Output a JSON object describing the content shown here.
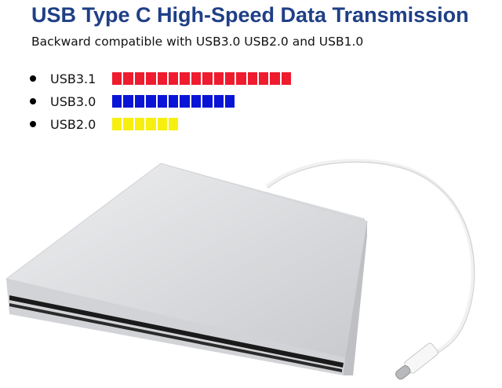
{
  "title": "USB Type C High-Speed Data Transmission",
  "subtitle": "Backward compatible with USB3.0 USB2.0 and USB1.0",
  "speed_bars": [
    {
      "label": "USB3.1",
      "blocks": 16,
      "color": "#ee1c2e"
    },
    {
      "label": "USB3.0",
      "blocks": 11,
      "color": "#0a14d6"
    },
    {
      "label": "USB2.0",
      "blocks": 6,
      "color": "#f7ef10"
    }
  ],
  "product": {
    "name": "external-optical-drive",
    "color": "#d8d9db",
    "cable_color": "#f4f4f4"
  }
}
